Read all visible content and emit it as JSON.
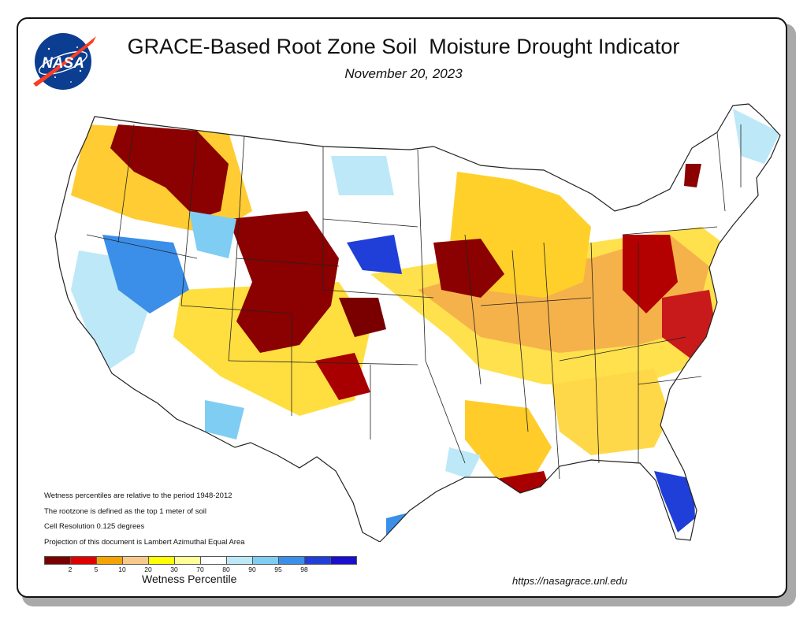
{
  "title": "GRACE-Based Root Zone Soil  Moisture Drought Indicator",
  "date": "November 20, 2023",
  "logo_text": "NASA",
  "notes": [
    "Wetness percentiles are relative to the period 1948-2012",
    "The rootzone is defined as the top 1 meter of soil",
    "Cell Resolution 0.125 degrees",
    "Projection of this document is Lambert Azimuthal Equal Area"
  ],
  "legend": {
    "label": "Wetness Percentile",
    "colors": [
      "#7a0000",
      "#e00000",
      "#f5a300",
      "#f8c98a",
      "#ffff00",
      "#ffff99",
      "#ffffff",
      "#bde8f7",
      "#7fcdf2",
      "#3b8fe8",
      "#1f3fd8",
      "#1a0fd0"
    ],
    "ticks": [
      "2",
      "5",
      "10",
      "20",
      "30",
      "70",
      "80",
      "90",
      "95",
      "98"
    ]
  },
  "url": "https://nasagrace.unl.edu"
}
